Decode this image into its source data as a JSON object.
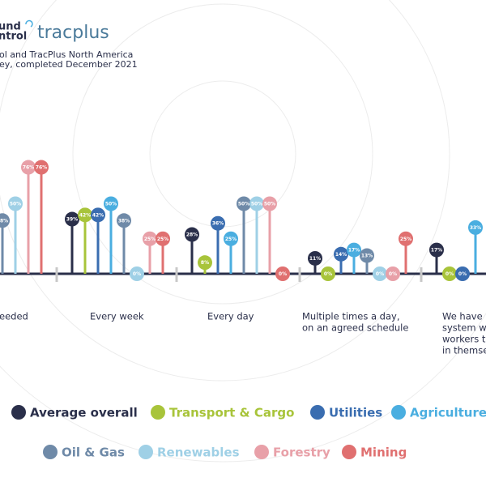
{
  "header": {
    "logo_left": [
      "und",
      "ntrol"
    ],
    "logo_right": "tracplus",
    "subtitle": [
      "ol and TracPlus North America",
      "ey, completed December 2021"
    ]
  },
  "chart_data": {
    "type": "lollipop",
    "categories": [
      [
        "eeded"
      ],
      [
        "Every week"
      ],
      [
        "Every day"
      ],
      [
        "Multiple times a day,",
        "on an agreed schedule"
      ],
      [
        "We have",
        "system w",
        "workers t",
        "in themse"
      ]
    ],
    "series": [
      {
        "name": "Average overall",
        "color": "#2a2f4a",
        "values": [
          null,
          39,
          28,
          11,
          17
        ],
        "value_labels": [
          null,
          "39%",
          "28%",
          "11%",
          "17%"
        ]
      },
      {
        "name": "Transport & Cargo",
        "color": "#a8c43a",
        "values": [
          null,
          42,
          8,
          0,
          0
        ],
        "value_labels": [
          null,
          "42%",
          "8%",
          "0%",
          "0%"
        ]
      },
      {
        "name": "Utilities",
        "color": "#3a6db0",
        "values": [
          null,
          42,
          36,
          14,
          0
        ],
        "value_labels": [
          null,
          "42%",
          "36%",
          "14%",
          "0%"
        ]
      },
      {
        "name": "Agriculture",
        "color": "#4aaee0",
        "values": [
          null,
          50,
          25,
          17,
          33
        ],
        "value_labels": [
          null,
          "50%",
          "25%",
          "17%",
          "33%"
        ]
      },
      {
        "name": "Oil & Gas",
        "color": "#6f8aa8",
        "values": [
          38,
          38,
          50,
          13,
          null
        ],
        "value_labels": [
          "38%",
          "38%",
          "50%",
          "13%",
          null
        ]
      },
      {
        "name": "Renewables",
        "color": "#9fd0e6",
        "values": [
          50,
          0,
          50,
          0,
          null
        ],
        "value_labels": [
          "50%",
          "0%",
          "50%",
          "0%",
          null
        ]
      },
      {
        "name": "Forestry",
        "color": "#e8a0a8",
        "values": [
          76,
          25,
          50,
          0,
          null
        ],
        "value_labels": [
          "76%",
          "25%",
          "50%",
          "0%",
          null
        ]
      },
      {
        "name": "Mining",
        "color": "#e07070",
        "values": [
          76,
          25,
          0,
          25,
          null
        ],
        "value_labels": [
          "76%",
          "25%",
          "0%",
          "25%",
          null
        ]
      }
    ]
  }
}
